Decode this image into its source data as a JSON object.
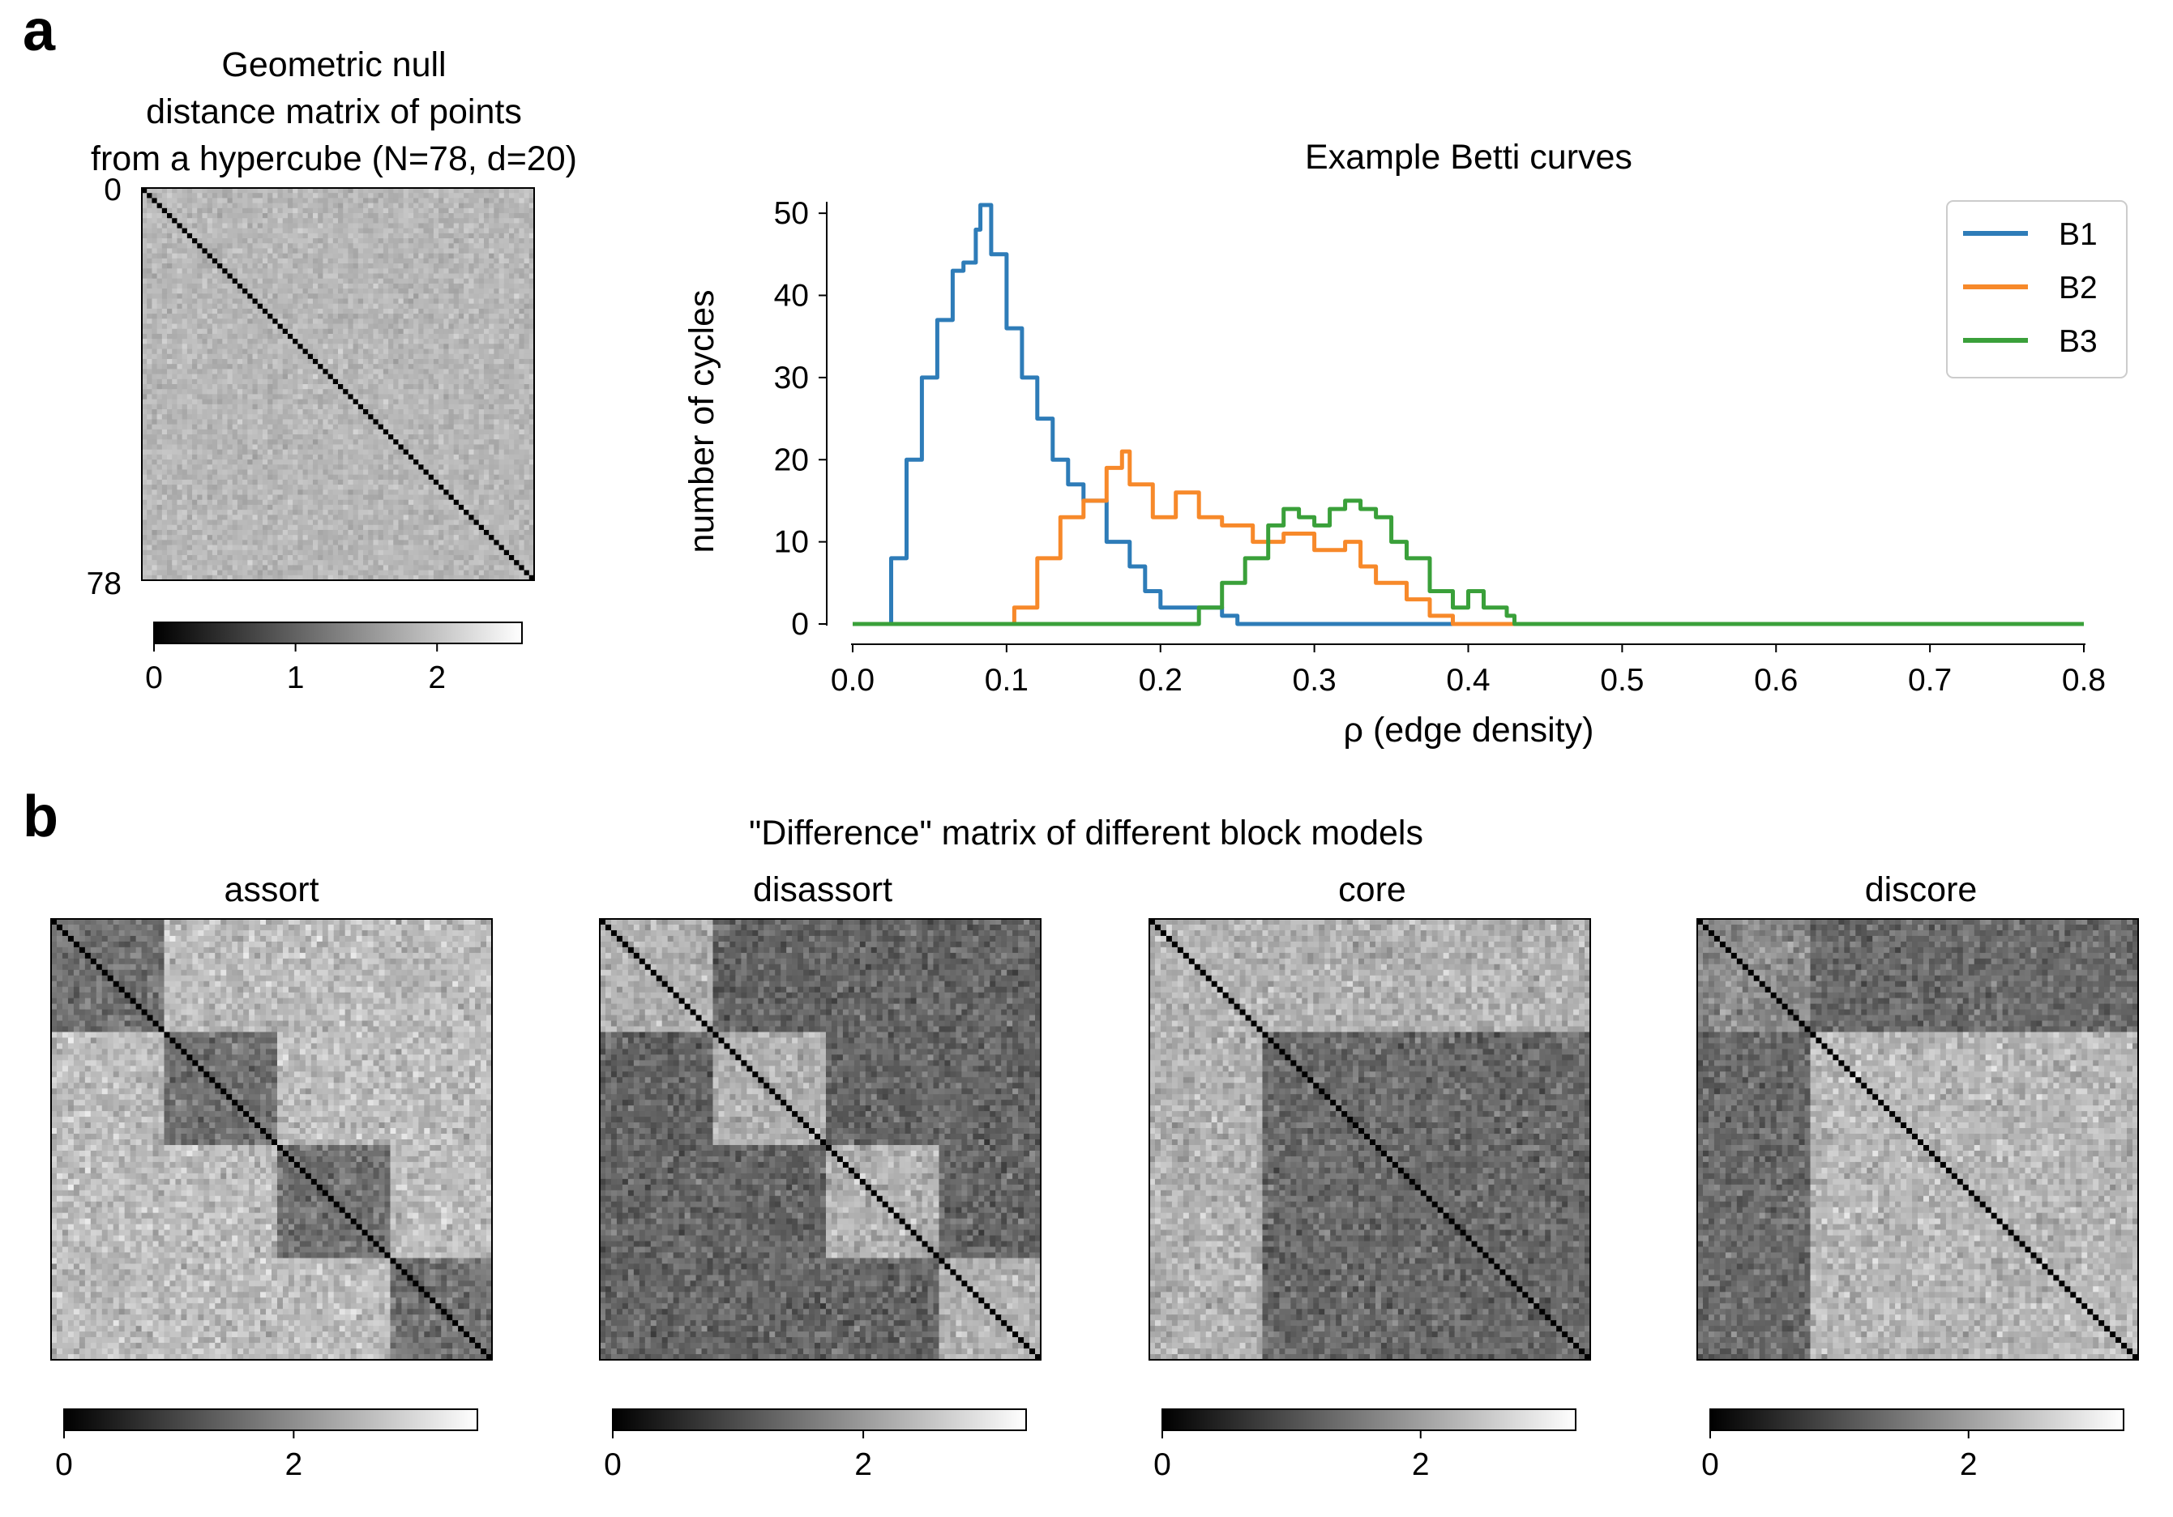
{
  "panel_a_letter": "a",
  "panel_b_letter": "b",
  "panel_b_title": "\"Difference\" matrix of different block models",
  "colors": {
    "B1": "#2e7cb8",
    "B2": "#f7892a",
    "B3": "#3aa03a"
  },
  "chart_data": [
    {
      "type": "heatmap",
      "title_lines": [
        "Geometric null",
        "distance matrix of points",
        "from a hypercube (N=78, d=20)"
      ],
      "n": 78,
      "yticks": [
        "0",
        "78"
      ],
      "colorbar": {
        "range": [
          0,
          2.6
        ],
        "ticks": [
          0,
          1,
          2
        ],
        "colormap": "gray"
      },
      "pattern": "null"
    },
    {
      "type": "line",
      "title": "Example Betti curves",
      "xlabel": "ρ (edge density)",
      "ylabel": "number of cycles",
      "xlim": [
        0,
        0.8
      ],
      "ylim": [
        0,
        51
      ],
      "xticks": [
        0.0,
        0.1,
        0.2,
        0.3,
        0.4,
        0.5,
        0.6,
        0.7,
        0.8
      ],
      "yticks": [
        0,
        10,
        20,
        30,
        40,
        50
      ],
      "legend": "top-right",
      "series": [
        {
          "name": "B1",
          "x": [
            0.0,
            0.018,
            0.025,
            0.035,
            0.045,
            0.055,
            0.065,
            0.072,
            0.08,
            0.083,
            0.09,
            0.1,
            0.11,
            0.12,
            0.13,
            0.14,
            0.15,
            0.165,
            0.18,
            0.19,
            0.2,
            0.22,
            0.24,
            0.25,
            0.3,
            0.8
          ],
          "y": [
            0,
            0,
            8,
            20,
            30,
            37,
            43,
            44,
            48,
            51,
            45,
            36,
            30,
            25,
            20,
            17,
            15,
            10,
            7,
            4,
            2,
            2,
            1,
            0,
            0,
            0
          ]
        },
        {
          "name": "B2",
          "x": [
            0.0,
            0.1,
            0.105,
            0.12,
            0.135,
            0.15,
            0.165,
            0.175,
            0.18,
            0.195,
            0.21,
            0.225,
            0.24,
            0.26,
            0.28,
            0.3,
            0.32,
            0.33,
            0.34,
            0.36,
            0.375,
            0.39,
            0.8
          ],
          "y": [
            0,
            0,
            2,
            8,
            13,
            15,
            19,
            21,
            17,
            13,
            16,
            13,
            12,
            10,
            11,
            9,
            10,
            7,
            5,
            3,
            1,
            0,
            0
          ]
        },
        {
          "name": "B3",
          "x": [
            0.0,
            0.215,
            0.225,
            0.24,
            0.255,
            0.27,
            0.28,
            0.29,
            0.3,
            0.31,
            0.32,
            0.33,
            0.34,
            0.35,
            0.36,
            0.375,
            0.39,
            0.4,
            0.41,
            0.425,
            0.43,
            0.8
          ],
          "y": [
            0,
            0,
            2,
            5,
            8,
            12,
            14,
            13,
            12,
            14,
            15,
            14,
            13,
            10,
            8,
            4,
            2,
            4,
            2,
            1,
            0,
            0
          ]
        }
      ]
    },
    {
      "type": "heatmap",
      "title": "assort",
      "n": 78,
      "blocks": [
        20,
        20,
        20,
        18
      ],
      "pattern": "assort",
      "colorbar": {
        "range": [
          0,
          3.6
        ],
        "ticks": [
          0,
          2
        ],
        "colormap": "gray"
      }
    },
    {
      "type": "heatmap",
      "title": "disassort",
      "n": 78,
      "blocks": [
        20,
        20,
        20,
        18
      ],
      "pattern": "disassort",
      "colorbar": {
        "range": [
          0,
          3.3
        ],
        "ticks": [
          0,
          2
        ],
        "colormap": "gray"
      }
    },
    {
      "type": "heatmap",
      "title": "core",
      "n": 78,
      "blocks": [
        20,
        58
      ],
      "pattern": "core",
      "colorbar": {
        "range": [
          0,
          3.2
        ],
        "ticks": [
          0,
          2
        ],
        "colormap": "gray"
      }
    },
    {
      "type": "heatmap",
      "title": "discore",
      "n": 78,
      "blocks": [
        20,
        58
      ],
      "pattern": "discore",
      "colorbar": {
        "range": [
          0,
          3.2
        ],
        "ticks": [
          0,
          2
        ],
        "colormap": "gray"
      }
    }
  ]
}
